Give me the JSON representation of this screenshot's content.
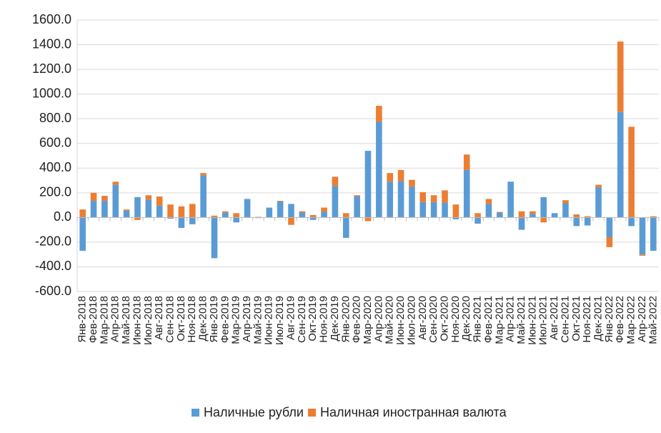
{
  "chart_data": {
    "type": "stacked_bar",
    "categories": [
      "Янв-2018",
      "Фев-2018",
      "Мар-2018",
      "Апр-2018",
      "Май-2018",
      "Июн-2018",
      "Июл-2018",
      "Авг-2018",
      "Сен-2018",
      "Окт-2018",
      "Ноя-2018",
      "Дек-2018",
      "Янв-2019",
      "Фев-2019",
      "Мар-2019",
      "Апр-2019",
      "Май-2019",
      "Июн-2019",
      "Июл-2019",
      "Авг-2019",
      "Сен-2019",
      "Окт-2019",
      "Ноя-2019",
      "Дек-2019",
      "Янв-2020",
      "Фев-2020",
      "Мар-2020",
      "Апр-2020",
      "Май-2020",
      "Июн-2020",
      "Июл-2020",
      "Авг-2020",
      "Сен-2020",
      "Окт-2020",
      "Ноя-2020",
      "Дек-2020",
      "Янв-2021",
      "Фев-2021",
      "Мар-2021",
      "Апр-2021",
      "Май-2021",
      "Июн-2021",
      "Июл-2021",
      "Авг-2021",
      "Сен-2021",
      "Окт-2021",
      "Ноя-2021",
      "Дек-2021",
      "Янв-2022",
      "Фев-2022",
      "Мар-2022",
      "Апр-2022",
      "Май-2022"
    ],
    "series": [
      {
        "name": "Наличные рубли",
        "color": "#5b9bd5",
        "values": [
          -270,
          135,
          135,
          265,
          55,
          165,
          145,
          95,
          -10,
          -85,
          -55,
          340,
          -330,
          40,
          -40,
          150,
          -5,
          80,
          130,
          110,
          40,
          -20,
          45,
          255,
          -165,
          170,
          540,
          775,
          290,
          295,
          250,
          125,
          125,
          120,
          -15,
          385,
          -50,
          110,
          40,
          290,
          -100,
          30,
          165,
          35,
          115,
          -70,
          -65,
          245,
          -160,
          855,
          -70,
          -300,
          -270
        ]
      },
      {
        "name": "Наличная иностранная валюта",
        "color": "#ed7d31",
        "values": [
          65,
          65,
          40,
          25,
          10,
          -20,
          35,
          75,
          105,
          90,
          110,
          20,
          15,
          10,
          35,
          0,
          5,
          0,
          5,
          -60,
          10,
          20,
          35,
          75,
          35,
          10,
          -30,
          130,
          70,
          90,
          55,
          80,
          55,
          100,
          105,
          125,
          35,
          40,
          5,
          0,
          50,
          20,
          -40,
          0,
          25,
          25,
          10,
          20,
          -80,
          570,
          735,
          -10,
          10
        ]
      }
    ],
    "ylim": [
      -600,
      1600
    ],
    "yticks": [
      {
        "value": -600,
        "label": "-600.0"
      },
      {
        "value": -400,
        "label": "-400.0"
      },
      {
        "value": -200,
        "label": "-200.0"
      },
      {
        "value": 0,
        "label": "0.0"
      },
      {
        "value": 200,
        "label": "200.0"
      },
      {
        "value": 400,
        "label": "400.0"
      },
      {
        "value": 600,
        "label": "600.0"
      },
      {
        "value": 800,
        "label": "800.0"
      },
      {
        "value": 1000,
        "label": "1000.0"
      },
      {
        "value": 1200,
        "label": "1200.0"
      },
      {
        "value": 1400,
        "label": "1400.0"
      },
      {
        "value": 1600,
        "label": "1600.0"
      }
    ],
    "grid": true,
    "legend": "bottom"
  }
}
